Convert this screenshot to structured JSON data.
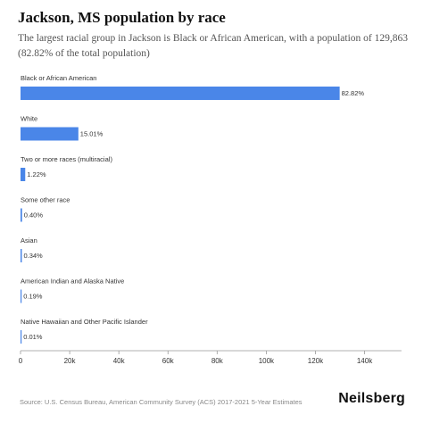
{
  "header": {
    "title": "Jackson, MS population by race",
    "subtitle": "The largest racial group in Jackson is Black or African American, with a population of 129,863 (82.82% of the total population)"
  },
  "footer": {
    "source": "Source: U.S. Census Bureau, American Community Survey (ACS) 2017-2021 5-Year Estimates",
    "brand": "Neilsberg"
  },
  "colors": {
    "bar": "#4a86e8",
    "axis": "#999999",
    "text": "#333333"
  },
  "chart_data": {
    "type": "bar",
    "orientation": "horizontal",
    "categories": [
      "Black or African American",
      "White",
      "Two or more races (multiracial)",
      "Some other race",
      "Asian",
      "American Indian and Alaska Native",
      "Native Hawaiian and Other Pacific Islander"
    ],
    "values": [
      129863,
      23534,
      1913,
      627,
      533,
      298,
      16
    ],
    "data_labels": [
      "82.82%",
      "15.01%",
      "1.22%",
      "0.40%",
      "0.34%",
      "0.19%",
      "0.01%"
    ],
    "xlim": [
      0,
      155000
    ],
    "x_ticks": [
      0,
      20000,
      40000,
      60000,
      80000,
      100000,
      120000,
      140000
    ],
    "x_tick_labels": [
      "0",
      "20k",
      "40k",
      "60k",
      "80k",
      "100k",
      "120k",
      "140k"
    ],
    "grid": false,
    "legend": "none"
  }
}
